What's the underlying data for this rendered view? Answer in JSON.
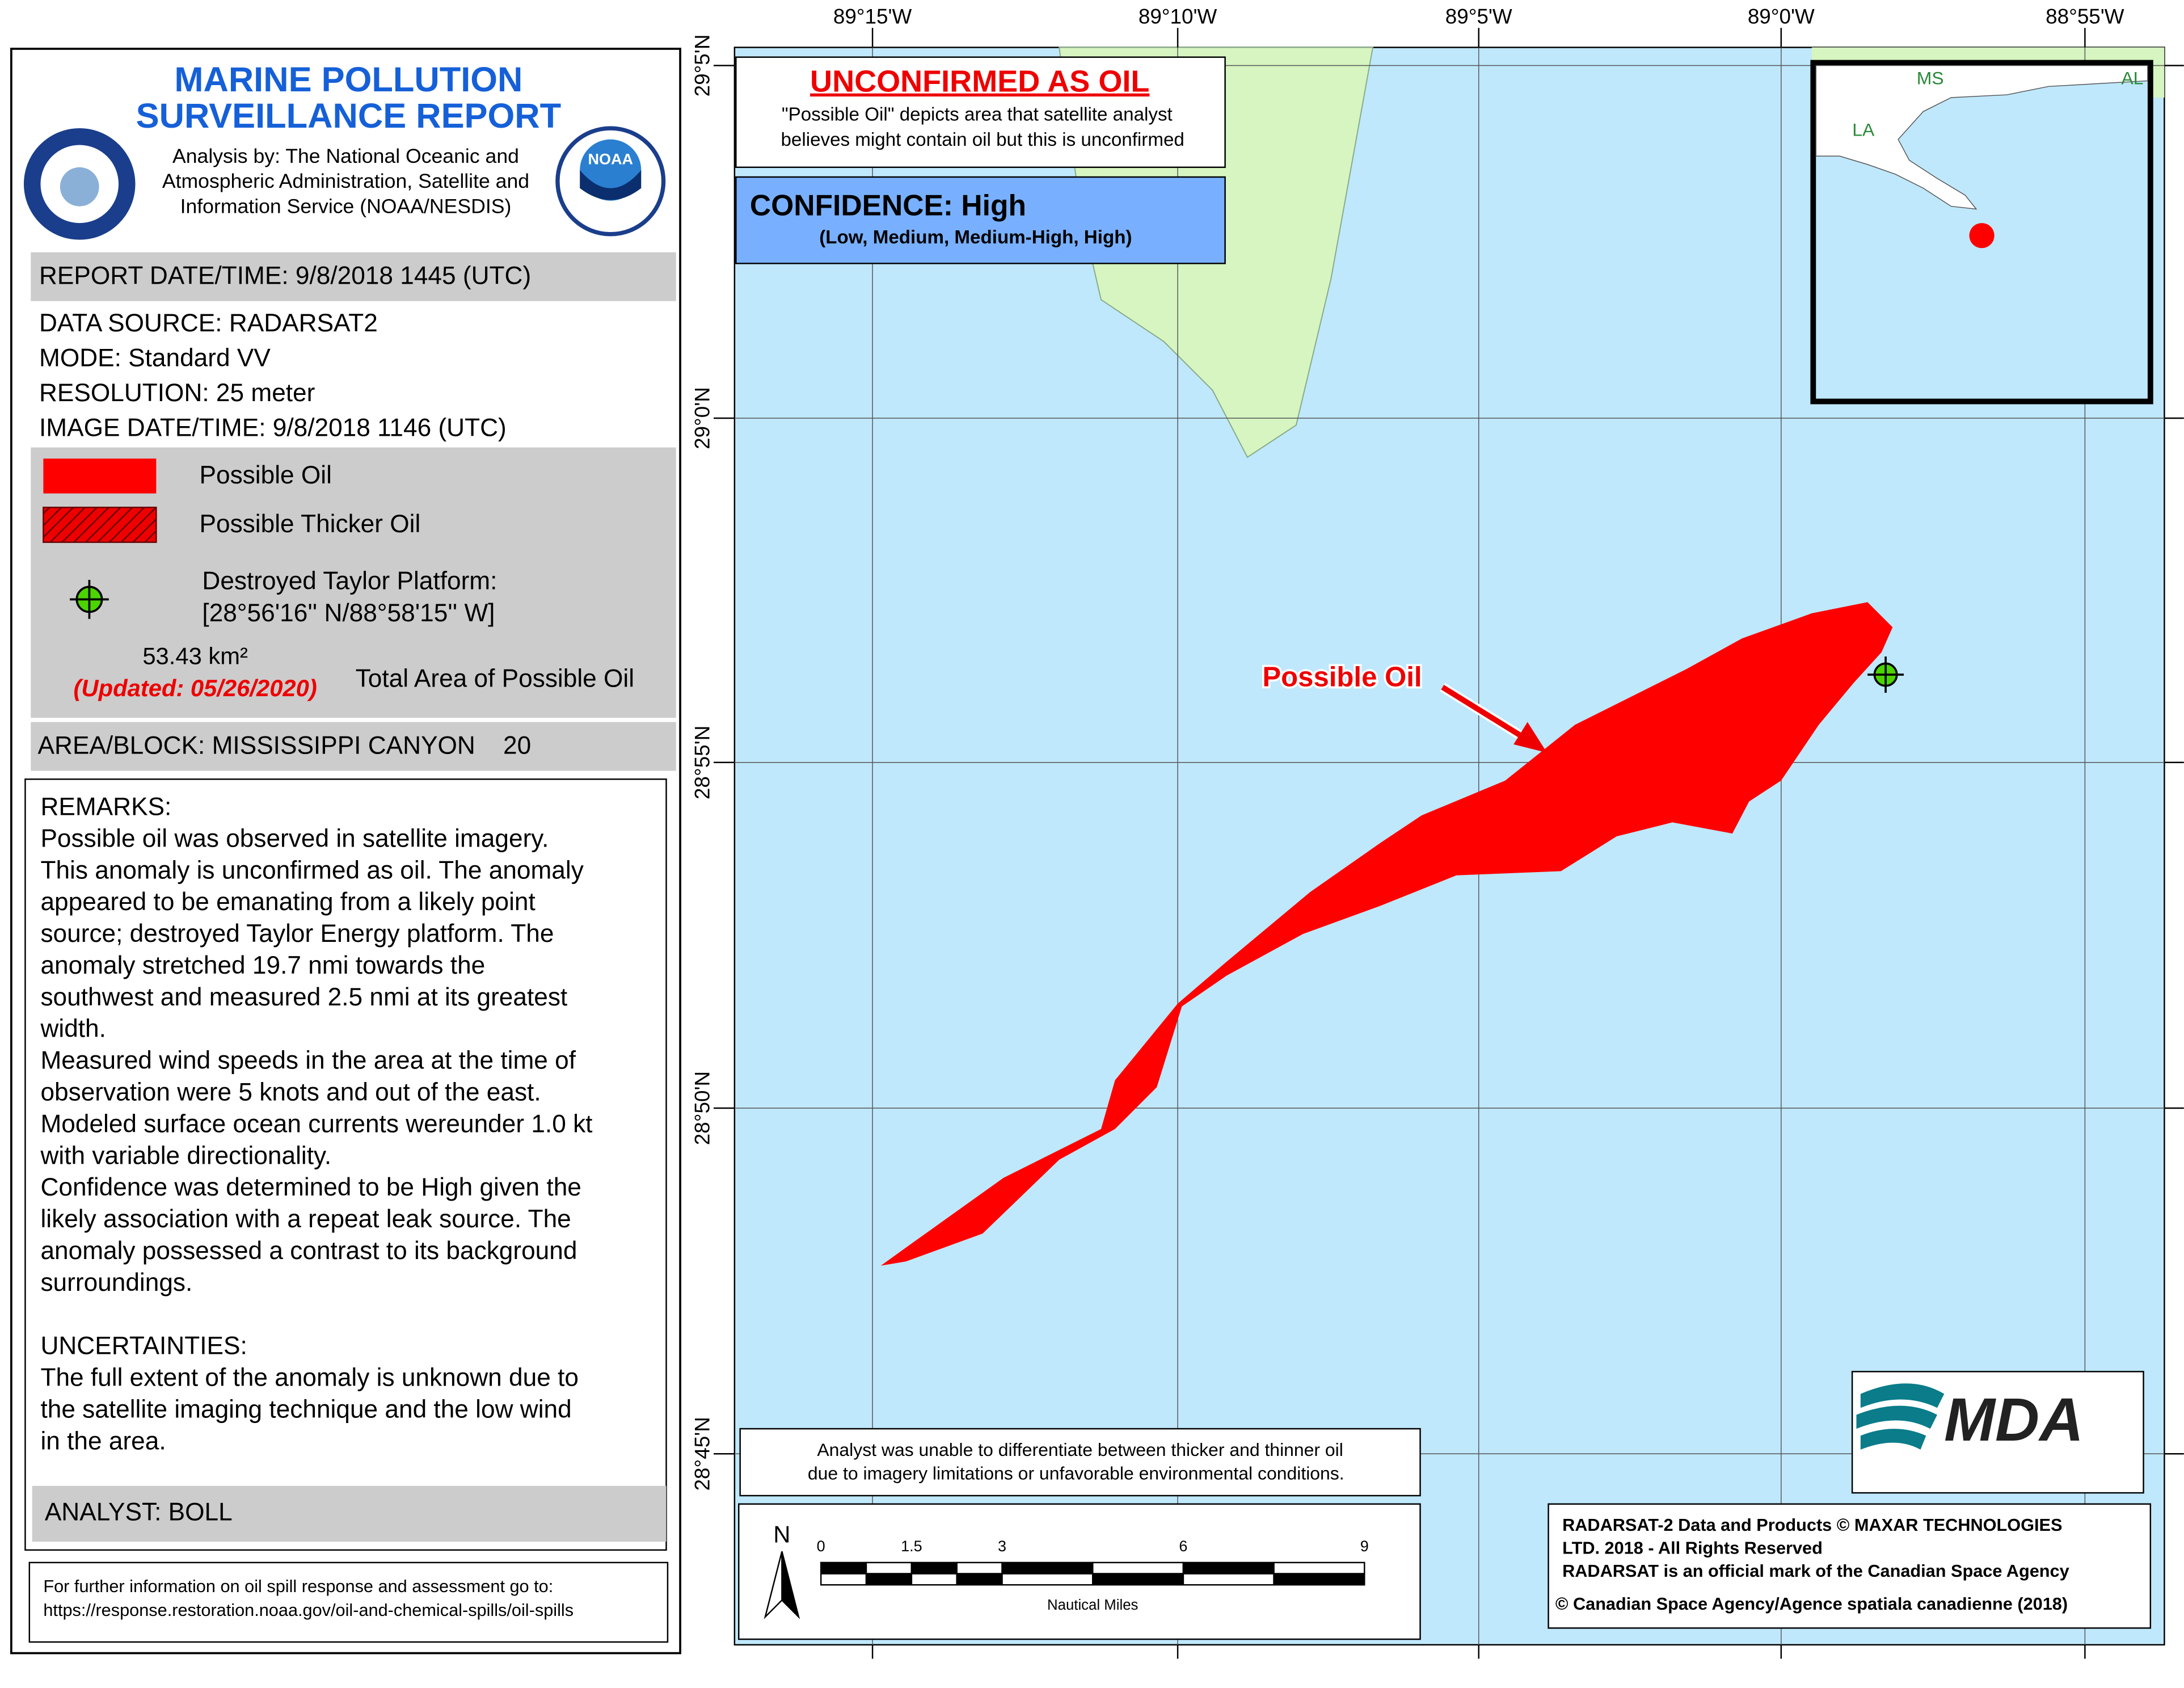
{
  "header": {
    "title": [
      "MARINE POLLUTION",
      "SURVEILLANCE REPORT"
    ],
    "analysis": [
      "Analysis by: The National Oceanic and",
      "Atmospheric Administration, Satellite and",
      "Information Service (NOAA/NESDIS)"
    ],
    "noaa_logo": "NOAA"
  },
  "report": {
    "report_datetime": "REPORT DATE/TIME: 9/8/2018 1445 (UTC)",
    "details": [
      "DATA SOURCE: RADARSAT2",
      "MODE: Standard VV",
      "RESOLUTION: 25 meter",
      "IMAGE DATE/TIME: 9/8/2018 1146 (UTC)"
    ]
  },
  "legend": {
    "items": [
      "Possible Oil",
      "Possible Thicker Oil"
    ],
    "platform": [
      "Destroyed Taylor Platform:",
      "[28°56'16'' N/88°58'15'' W]"
    ],
    "area": "53.43 km²",
    "updated": "(Updated: 05/26/2020)",
    "area_label": "Total Area of Possible Oil"
  },
  "area_block": "AREA/BLOCK: MISSISSIPPI CANYON    20",
  "remarks": {
    "heading": "REMARKS:",
    "lines": [
      "Possible oil was observed in satellite imagery.",
      "This anomaly is unconfirmed as oil. The anomaly",
      "appeared to be emanating from a likely point",
      "source; destroyed Taylor Energy platform. The",
      "anomaly stretched 19.7 nmi towards the",
      "southwest and measured 2.5 nmi at its greatest",
      "width.",
      "Measured wind speeds in the area at the time of",
      "observation were 5 knots and out of the east.",
      "Modeled surface ocean currents wereunder 1.0 kt",
      "with variable directionality.",
      "Confidence was determined to be High given the",
      "likely association with a repeat leak source. The",
      "anomaly possessed a contrast to its background",
      "surroundings."
    ]
  },
  "uncertainties": {
    "heading": "UNCERTAINTIES:",
    "lines": [
      "The full extent of the anomaly is unknown due to",
      "the satellite imaging technique and the low wind",
      "in the area."
    ]
  },
  "analyst": "ANALYST: BOLL",
  "footer": [
    "For further information on oil spill response and assessment go to:",
    "https://response.restoration.noaa.gov/oil-and-chemical-spills/oil-spills"
  ],
  "map": {
    "lon_labels": [
      "89°15'W",
      "89°10'W",
      "89°5'W",
      "89°0'W",
      "88°55'W"
    ],
    "lat_labels": [
      "29°5'N",
      "29°0'N",
      "28°55'N",
      "28°50'N",
      "28°45'N"
    ],
    "banner": {
      "title": "UNCONFIRMED AS OIL",
      "text": [
        "\"Possible Oil\" depicts area that satellite analyst",
        "believes might contain oil but this is unconfirmed"
      ]
    },
    "confidence": {
      "title": "CONFIDENCE: High",
      "scale": "(Low, Medium, Medium-High, High)"
    },
    "annotation": "Possible Oil",
    "inset_labels": [
      "MS",
      "AL",
      "LA"
    ],
    "disclaimer": [
      "Analyst was unable to differentiate between thicker and thinner oil",
      "due to imagery limitations or unfavorable environmental conditions."
    ],
    "scalebar": {
      "north": "N",
      "ticks": [
        0,
        1.5,
        3,
        6,
        9
      ],
      "unit": "Nautical Miles"
    },
    "logo": "MDA",
    "credits": [
      "RADARSAT-2 Data and Products © MAXAR TECHNOLOGIES",
      "LTD. 2018 - All Rights Reserved",
      "RADARSAT is an official mark of the Canadian Space Agency",
      "© Canadian Space Agency/Agence spatiala canadienne (2018)"
    ]
  }
}
